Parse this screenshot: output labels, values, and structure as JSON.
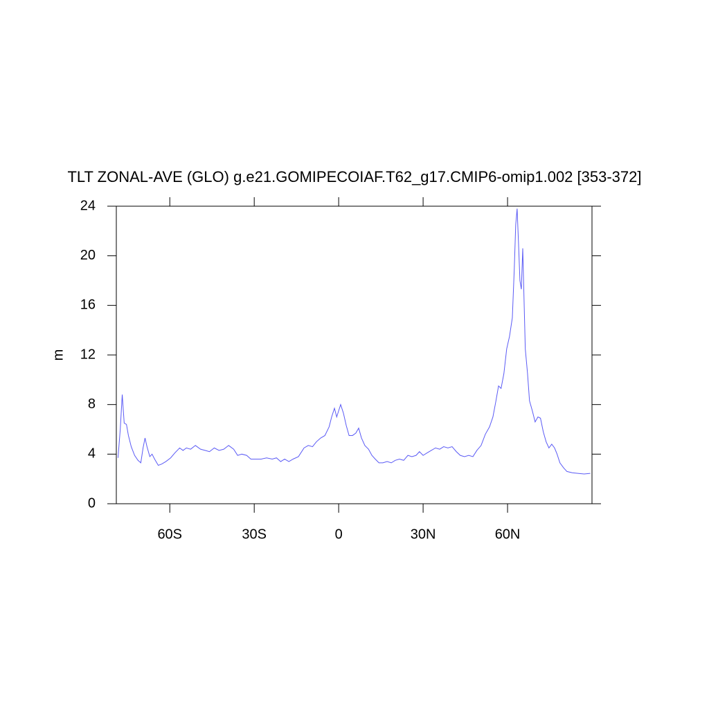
{
  "chart_data": {
    "type": "line",
    "title": "TLT ZONAL-AVE (GLO) g.e21.GOMIPECOIAF.T62_g17.CMIP6-omip1.002 [353-372]",
    "y_label": "m",
    "xlim": [
      -79,
      90
    ],
    "ylim": [
      0,
      24
    ],
    "xticks": [
      {
        "value": -60,
        "label": "60S"
      },
      {
        "value": -30,
        "label": "30S"
      },
      0,
      {
        "value": 30,
        "label": "30N"
      },
      {
        "value": 60,
        "label": "60N"
      }
    ],
    "yticks": [
      0,
      4,
      8,
      12,
      16,
      20,
      24
    ],
    "series": [
      {
        "color": "#5a5af5",
        "x": [
          -78.4,
          -77.6,
          -76.9,
          -76.2,
          -75.4,
          -74.7,
          -73.7,
          -72.5,
          -71.3,
          -70.3,
          -69.5,
          -68.8,
          -68.1,
          -67.1,
          -66.3,
          -65.4,
          -64.1,
          -62.9,
          -61.4,
          -59.7,
          -58.2,
          -56.5,
          -55.3,
          -54.1,
          -52.6,
          -50.9,
          -49.1,
          -47.4,
          -45.9,
          -44.2,
          -42.5,
          -40.8,
          -39.1,
          -37.3,
          -35.9,
          -34.4,
          -32.7,
          -31.2,
          -29.5,
          -27.5,
          -25.6,
          -23.6,
          -22.1,
          -20.6,
          -19.2,
          -17.7,
          -16.2,
          -14.3,
          -12.3,
          -10.8,
          -9.3,
          -7.9,
          -6.4,
          -4.9,
          -3.4,
          -2.5,
          -1.5,
          -0.7,
          0,
          0.7,
          1.7,
          2.7,
          3.7,
          4.9,
          6.1,
          7.1,
          8.1,
          9.3,
          10.6,
          11.8,
          13.0,
          14.3,
          15.7,
          17.2,
          18.7,
          20.1,
          21.6,
          23.1,
          24.6,
          26.0,
          27.5,
          28.7,
          30,
          31.4,
          32.9,
          34.4,
          35.9,
          37.3,
          38.8,
          40.3,
          41.8,
          43.2,
          44.7,
          46.2,
          47.7,
          49.1,
          50.6,
          52.1,
          53.6,
          54.8,
          55.8,
          56.8,
          57.7,
          58.7,
          59.7,
          60.7,
          61.7,
          62.4,
          62.9,
          63.4,
          63.9,
          64.4,
          64.9,
          65.4,
          65.8,
          66.3,
          67.1,
          67.8,
          68.8,
          69.8,
          70.8,
          71.7,
          72.7,
          73.7,
          74.7,
          75.7,
          76.7,
          77.6,
          78.6,
          79.9,
          81.1,
          83.0,
          85.0,
          87.2,
          89.4
        ],
        "values": [
          3.7,
          6,
          8.8,
          6.5,
          6.4,
          5.5,
          4.6,
          3.9,
          3.5,
          3.3,
          4.5,
          5.3,
          4.6,
          3.8,
          4.0,
          3.6,
          3.1,
          3.2,
          3.4,
          3.7,
          4.1,
          4.5,
          4.3,
          4.5,
          4.4,
          4.7,
          4.4,
          4.3,
          4.2,
          4.5,
          4.3,
          4.4,
          4.7,
          4.4,
          3.9,
          4.0,
          3.9,
          3.6,
          3.6,
          3.6,
          3.7,
          3.6,
          3.7,
          3.4,
          3.6,
          3.4,
          3.6,
          3.8,
          4.5,
          4.7,
          4.6,
          5.0,
          5.3,
          5.5,
          6.2,
          7.0,
          7.7,
          7.0,
          7.5,
          8.0,
          7.3,
          6.3,
          5.5,
          5.5,
          5.7,
          6.1,
          5.3,
          4.7,
          4.4,
          3.9,
          3.6,
          3.3,
          3.3,
          3.4,
          3.3,
          3.5,
          3.6,
          3.5,
          3.9,
          3.8,
          3.9,
          4.2,
          3.9,
          4.1,
          4.3,
          4.5,
          4.4,
          4.6,
          4.5,
          4.6,
          4.2,
          3.9,
          3.8,
          3.9,
          3.8,
          4.3,
          4.7,
          5.6,
          6.2,
          7.0,
          8.2,
          9.5,
          9.3,
          10.5,
          12.5,
          13.5,
          15,
          19,
          22.5,
          23.8,
          21,
          18,
          17.3,
          20.6,
          17,
          12.5,
          10.5,
          8.3,
          7.5,
          6.6,
          7.0,
          6.9,
          5.8,
          5.0,
          4.5,
          4.8,
          4.5,
          4.0,
          3.3,
          2.9,
          2.6,
          2.5,
          2.45,
          2.4,
          2.45
        ]
      }
    ]
  }
}
